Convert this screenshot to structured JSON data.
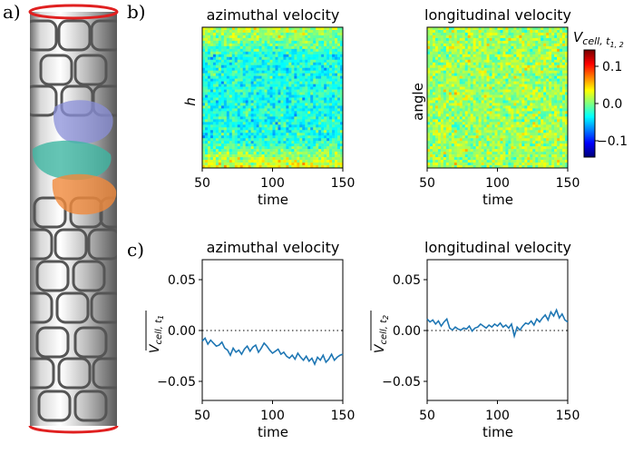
{
  "panels": {
    "a": "a)",
    "b": "b)",
    "c": "c)"
  },
  "colors": {
    "cylinder_rim": "#e02020",
    "cell_outline": "#555555",
    "cell_purple": "#8a8fd8",
    "cell_teal": "#3fb7a3",
    "cell_orange": "#f08a3c",
    "line": "#1f77b4",
    "zero_line": "#000000"
  },
  "chart_data": [
    {
      "type": "heatmap",
      "title": "azimuthal velocity",
      "xlabel": "time",
      "ylabel": "h",
      "xlim": [
        50,
        150
      ],
      "xticks": [
        "50",
        "100",
        "150"
      ],
      "value_range": [
        -0.15,
        0.15
      ],
      "colormap": "jet",
      "description_values": {
        "top_left_to_top_right_mean": 0.02,
        "center_mean": -0.03,
        "bottom_mean": 0.03
      }
    },
    {
      "type": "heatmap",
      "title": "longitudinal velocity",
      "xlabel": "time",
      "ylabel": "angle",
      "xlim": [
        50,
        150
      ],
      "xticks": [
        "50",
        "100",
        "150"
      ],
      "value_range": [
        -0.15,
        0.15
      ],
      "colormap": "jet",
      "description_values": {
        "mean": 0.01
      }
    },
    {
      "type": "line",
      "title": "azimuthal velocity",
      "xlabel": "time",
      "ylabel": "V_cell,t1 (mean)",
      "xlim": [
        50,
        150
      ],
      "ylim": [
        -0.07,
        0.07
      ],
      "xticks": [
        "50",
        "100",
        "150"
      ],
      "yticks": [
        "0.05",
        "0.00",
        "−0.05"
      ],
      "reference_line": 0.0,
      "x": [
        50,
        52,
        54,
        56,
        58,
        60,
        62,
        64,
        66,
        68,
        70,
        72,
        74,
        76,
        78,
        80,
        82,
        84,
        86,
        88,
        90,
        92,
        94,
        96,
        98,
        100,
        102,
        104,
        106,
        108,
        110,
        112,
        114,
        116,
        118,
        120,
        122,
        124,
        126,
        128,
        130,
        132,
        134,
        136,
        138,
        140,
        142,
        144,
        146,
        148,
        150
      ],
      "values": [
        -0.011,
        -0.008,
        -0.014,
        -0.01,
        -0.013,
        -0.016,
        -0.015,
        -0.012,
        -0.018,
        -0.02,
        -0.025,
        -0.018,
        -0.022,
        -0.02,
        -0.024,
        -0.019,
        -0.016,
        -0.021,
        -0.017,
        -0.015,
        -0.022,
        -0.018,
        -0.013,
        -0.016,
        -0.02,
        -0.023,
        -0.021,
        -0.019,
        -0.024,
        -0.022,
        -0.026,
        -0.028,
        -0.025,
        -0.029,
        -0.023,
        -0.027,
        -0.03,
        -0.026,
        -0.031,
        -0.028,
        -0.034,
        -0.027,
        -0.03,
        -0.025,
        -0.032,
        -0.029,
        -0.024,
        -0.03,
        -0.027,
        -0.025,
        -0.024
      ]
    },
    {
      "type": "line",
      "title": "longitudinal velocity",
      "xlabel": "time",
      "ylabel": "V_cell,t2 (mean)",
      "xlim": [
        50,
        150
      ],
      "ylim": [
        -0.07,
        0.07
      ],
      "xticks": [
        "50",
        "100",
        "150"
      ],
      "yticks": [
        "0.05",
        "0.00",
        "−0.05"
      ],
      "reference_line": 0.0,
      "x": [
        50,
        52,
        54,
        56,
        58,
        60,
        62,
        64,
        66,
        68,
        70,
        72,
        74,
        76,
        78,
        80,
        82,
        84,
        86,
        88,
        90,
        92,
        94,
        96,
        98,
        100,
        102,
        104,
        106,
        108,
        110,
        112,
        114,
        116,
        118,
        120,
        122,
        124,
        126,
        128,
        130,
        132,
        134,
        136,
        138,
        140,
        142,
        144,
        146,
        148,
        150
      ],
      "values": [
        0.011,
        0.008,
        0.01,
        0.006,
        0.009,
        0.004,
        0.008,
        0.011,
        0.002,
        0.0,
        0.003,
        0.001,
        0.0,
        0.002,
        0.001,
        0.004,
        -0.001,
        0.002,
        0.003,
        0.006,
        0.004,
        0.002,
        0.005,
        0.003,
        0.006,
        0.004,
        0.007,
        0.003,
        0.005,
        0.002,
        0.006,
        -0.006,
        0.003,
        0.0,
        0.004,
        0.007,
        0.006,
        0.009,
        0.005,
        0.011,
        0.008,
        0.012,
        0.015,
        0.01,
        0.018,
        0.014,
        0.02,
        0.012,
        0.016,
        0.01,
        0.008
      ]
    },
    {
      "type": "colorbar",
      "label_var": "V",
      "label_sub": "cell, t",
      "label_subsub": "1, 2",
      "ticks": [
        "0.1",
        "0.0",
        "−0.1"
      ],
      "range": [
        -0.15,
        0.15
      ]
    }
  ],
  "labels": {
    "hm1_title": "azimuthal velocity",
    "hm2_title": "longitudinal velocity",
    "lc1_title": "azimuthal velocity",
    "lc2_title": "longitudinal velocity",
    "time": "time",
    "h": "h",
    "angle": "angle",
    "V": "V",
    "sub_t": "cell, t",
    "sub_1": "1",
    "sub_2": "2",
    "sub_12": "1, 2"
  }
}
